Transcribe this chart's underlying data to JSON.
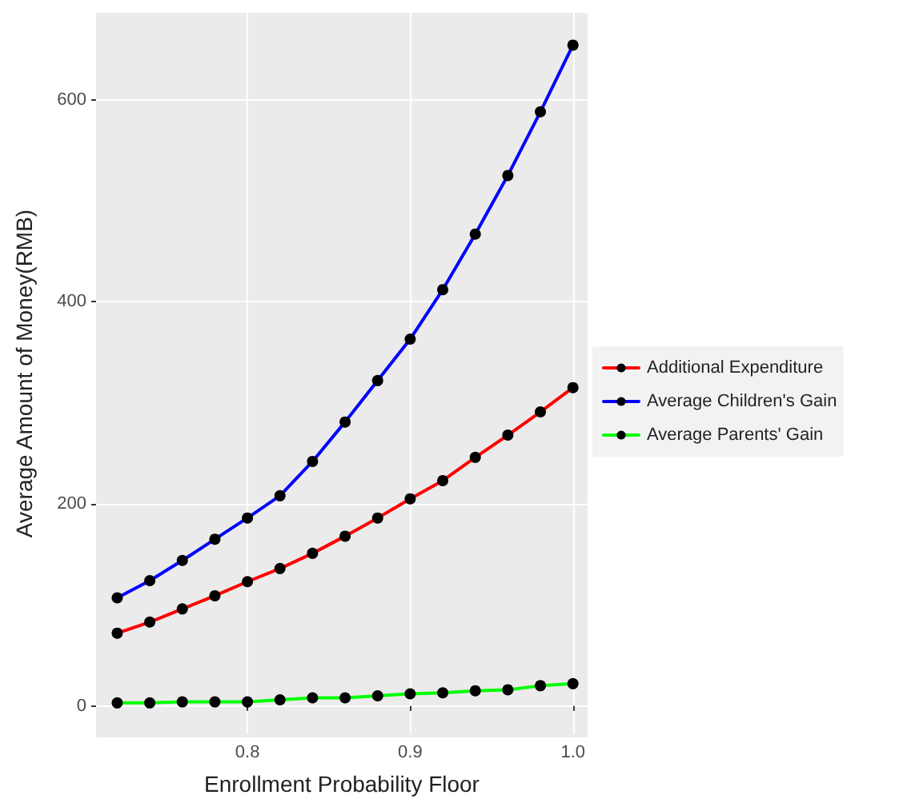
{
  "chart_data": {
    "type": "line",
    "xlabel": "Enrollment Probability Floor",
    "ylabel": "Average Amount of Money(RMB)",
    "x": [
      0.72,
      0.74,
      0.76,
      0.78,
      0.8,
      0.82,
      0.84,
      0.86,
      0.88,
      0.9,
      0.92,
      0.94,
      0.96,
      0.98,
      1.0
    ],
    "series": [
      {
        "name": "Additional Expenditure",
        "color": "#ff0000",
        "values": [
          72,
          83,
          96,
          109,
          123,
          136,
          151,
          168,
          186,
          205,
          223,
          246,
          268,
          291,
          315
        ]
      },
      {
        "name": "Average Children's Gain",
        "color": "#0000ff",
        "values": [
          107,
          124,
          144,
          165,
          186,
          208,
          242,
          281,
          322,
          363,
          412,
          467,
          525,
          588,
          654
        ]
      },
      {
        "name": "Average Parents' Gain",
        "color": "#00ff00",
        "values": [
          3,
          3,
          4,
          4,
          4,
          6,
          8,
          8,
          10,
          12,
          13,
          15,
          16,
          20,
          22
        ]
      }
    ],
    "xlim": [
      0.707,
      1.009
    ],
    "xticks": [
      {
        "value": 0.8,
        "label": "0.8"
      },
      {
        "value": 0.9,
        "label": "0.9"
      },
      {
        "value": 1.0,
        "label": "1.0"
      }
    ],
    "ylim": [
      -28,
      686
    ],
    "yticks": [
      0,
      200,
      400,
      600
    ],
    "grid": true,
    "legend": "right",
    "marker": "circle",
    "line_style": "solid"
  }
}
